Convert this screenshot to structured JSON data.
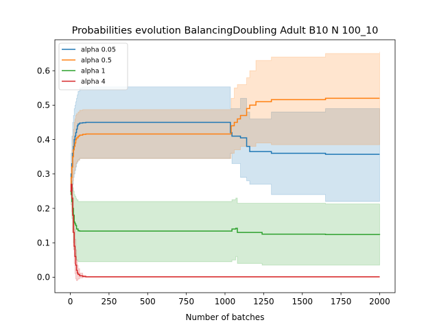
{
  "chart_data": {
    "type": "line",
    "title": "Probabilities evolution BalancingDoubling Adult B10 N 100_10",
    "xlabel": "Number of batches",
    "ylabel": "",
    "xlim": [
      -100,
      2100
    ],
    "ylim": [
      -0.045,
      0.69
    ],
    "xticks": [
      0,
      250,
      500,
      750,
      1000,
      1250,
      1500,
      1750,
      2000
    ],
    "xtick_labels": [
      "0",
      "250",
      "500",
      "750",
      "1000",
      "1250",
      "1500",
      "1750",
      "2000"
    ],
    "yticks": [
      0.0,
      0.1,
      0.2,
      0.3,
      0.4,
      0.5,
      0.6
    ],
    "ytick_labels": [
      "0.0",
      "0.1",
      "0.2",
      "0.3",
      "0.4",
      "0.5",
      "0.6"
    ],
    "grid": false,
    "legend_position": "top-left",
    "series": [
      {
        "name": "alpha 0.05",
        "color": "#1f77b4",
        "x": [
          0,
          5,
          10,
          15,
          20,
          25,
          30,
          35,
          40,
          45,
          50,
          60,
          80,
          100,
          150,
          1030,
          1035,
          1045,
          1100,
          1140,
          1160,
          1300,
          1650,
          2000
        ],
        "y": [
          0.25,
          0.3,
          0.33,
          0.36,
          0.38,
          0.4,
          0.41,
          0.42,
          0.43,
          0.44,
          0.445,
          0.448,
          0.449,
          0.45,
          0.45,
          0.45,
          0.42,
          0.41,
          0.405,
          0.38,
          0.365,
          0.36,
          0.357,
          0.357
        ],
        "lower": [
          0.25,
          0.24,
          0.25,
          0.27,
          0.29,
          0.3,
          0.31,
          0.32,
          0.33,
          0.335,
          0.34,
          0.345,
          0.345,
          0.345,
          0.345,
          0.345,
          0.36,
          0.33,
          0.29,
          0.28,
          0.27,
          0.24,
          0.22,
          0.22
        ],
        "upper": [
          0.25,
          0.36,
          0.41,
          0.45,
          0.47,
          0.49,
          0.5,
          0.51,
          0.52,
          0.53,
          0.54,
          0.55,
          0.553,
          0.553,
          0.553,
          0.553,
          0.49,
          0.49,
          0.52,
          0.48,
          0.46,
          0.48,
          0.49,
          0.49
        ]
      },
      {
        "name": "alpha 0.5",
        "color": "#ff7f0e",
        "x": [
          0,
          5,
          10,
          15,
          20,
          25,
          30,
          35,
          40,
          50,
          60,
          80,
          100,
          150,
          1030,
          1040,
          1060,
          1080,
          1100,
          1140,
          1160,
          1200,
          1300,
          1650,
          2000
        ],
        "y": [
          0.25,
          0.29,
          0.32,
          0.35,
          0.37,
          0.38,
          0.39,
          0.4,
          0.405,
          0.41,
          0.413,
          0.415,
          0.416,
          0.416,
          0.416,
          0.44,
          0.45,
          0.46,
          0.47,
          0.49,
          0.5,
          0.51,
          0.516,
          0.52,
          0.52
        ],
        "lower": [
          0.25,
          0.25,
          0.27,
          0.28,
          0.3,
          0.31,
          0.32,
          0.33,
          0.335,
          0.34,
          0.345,
          0.345,
          0.345,
          0.345,
          0.345,
          0.36,
          0.37,
          0.37,
          0.38,
          0.38,
          0.38,
          0.39,
          0.385,
          0.385,
          0.385
        ],
        "upper": [
          0.25,
          0.33,
          0.37,
          0.41,
          0.43,
          0.45,
          0.46,
          0.47,
          0.475,
          0.48,
          0.485,
          0.487,
          0.487,
          0.487,
          0.487,
          0.52,
          0.55,
          0.56,
          0.56,
          0.58,
          0.6,
          0.63,
          0.64,
          0.65,
          0.655
        ]
      },
      {
        "name": "alpha 1",
        "color": "#2ca02c",
        "x": [
          0,
          5,
          10,
          15,
          20,
          25,
          30,
          35,
          40,
          50,
          60,
          100,
          150,
          1030,
          1045,
          1070,
          1080,
          1240,
          1650,
          2000
        ],
        "y": [
          0.25,
          0.24,
          0.22,
          0.2,
          0.18,
          0.16,
          0.155,
          0.15,
          0.14,
          0.135,
          0.134,
          0.134,
          0.134,
          0.134,
          0.14,
          0.142,
          0.13,
          0.125,
          0.124,
          0.123
        ],
        "lower": [
          0.25,
          0.21,
          0.17,
          0.13,
          0.1,
          0.08,
          0.07,
          0.06,
          0.05,
          0.045,
          0.045,
          0.045,
          0.045,
          0.045,
          0.05,
          0.06,
          0.04,
          0.035,
          0.035,
          0.035
        ],
        "upper": [
          0.25,
          0.28,
          0.27,
          0.26,
          0.25,
          0.24,
          0.235,
          0.23,
          0.225,
          0.22,
          0.22,
          0.22,
          0.22,
          0.22,
          0.225,
          0.23,
          0.215,
          0.215,
          0.213,
          0.213
        ]
      },
      {
        "name": "alpha 4",
        "color": "#d62728",
        "x": [
          0,
          5,
          10,
          15,
          20,
          25,
          30,
          35,
          40,
          45,
          50,
          60,
          80,
          100,
          150,
          1000,
          2000
        ],
        "y": [
          0.25,
          0.27,
          0.23,
          0.18,
          0.13,
          0.09,
          0.06,
          0.035,
          0.02,
          0.012,
          0.008,
          0.004,
          0.002,
          0.001,
          0.001,
          0.001,
          0.001
        ],
        "lower": [
          0.25,
          0.24,
          0.19,
          0.13,
          0.08,
          0.04,
          0.01,
          -0.005,
          -0.01,
          -0.008,
          -0.005,
          -0.002,
          0.0,
          0.0,
          0.0,
          0.0,
          0.0
        ],
        "upper": [
          0.25,
          0.3,
          0.27,
          0.23,
          0.18,
          0.14,
          0.11,
          0.08,
          0.05,
          0.035,
          0.025,
          0.012,
          0.005,
          0.002,
          0.002,
          0.002,
          0.002
        ]
      }
    ]
  }
}
